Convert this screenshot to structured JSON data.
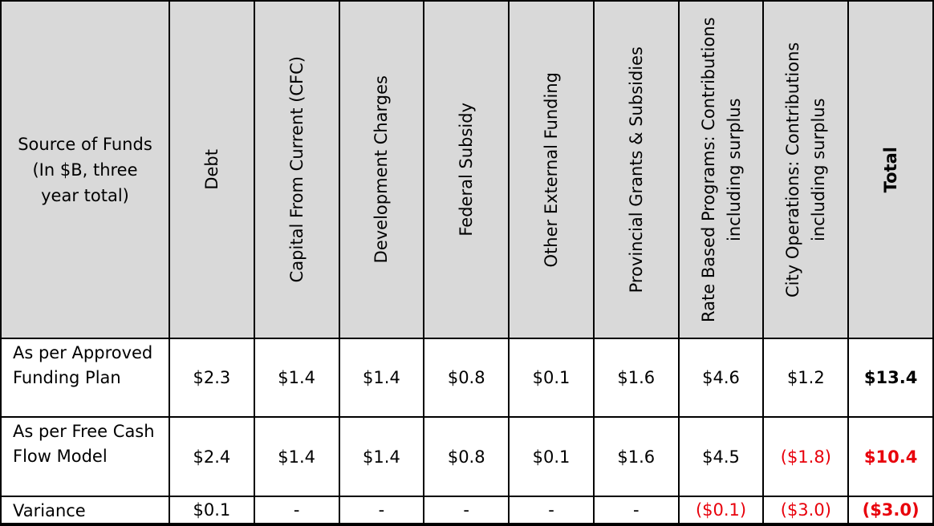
{
  "table": {
    "header": [
      "Source of Funds (In $B, three year total)",
      "Debt",
      "Capital From Current (CFC)",
      "Development Charges",
      "Federal Subsidy",
      "Other External Funding",
      "Provincial Grants & Subsidies",
      "Rate Based Programs: Contributions including surplus",
      "City Operations: Contributions including surplus",
      "Total"
    ],
    "rows": [
      {
        "label": "As per Approved Funding Plan",
        "cells": [
          {
            "text": "$2.3"
          },
          {
            "text": "$1.4"
          },
          {
            "text": "$1.4"
          },
          {
            "text": "$0.8"
          },
          {
            "text": "$0.1"
          },
          {
            "text": "$1.6"
          },
          {
            "text": "$4.6"
          },
          {
            "text": "$1.2"
          },
          {
            "text": "$13.4"
          }
        ]
      },
      {
        "label": "As per Free Cash Flow Model",
        "cells": [
          {
            "text": "$2.4"
          },
          {
            "text": "$1.4"
          },
          {
            "text": "$1.4"
          },
          {
            "text": "$0.8"
          },
          {
            "text": "$0.1"
          },
          {
            "text": "$1.6"
          },
          {
            "text": "$4.5"
          },
          {
            "text": "($1.8)",
            "color": "#e8000b"
          },
          {
            "text": "$10.4",
            "color": "#e8000b"
          }
        ]
      },
      {
        "label": "Variance",
        "cells": [
          {
            "text": "$0.1"
          },
          {
            "text": "-"
          },
          {
            "text": "-"
          },
          {
            "text": "-"
          },
          {
            "text": "-"
          },
          {
            "text": "-"
          },
          {
            "text": "($0.1)",
            "color": "#e8000b"
          },
          {
            "text": "($3.0)",
            "color": "#e8000b"
          },
          {
            "text": "($3.0)",
            "color": "#e8000b"
          }
        ]
      }
    ]
  }
}
